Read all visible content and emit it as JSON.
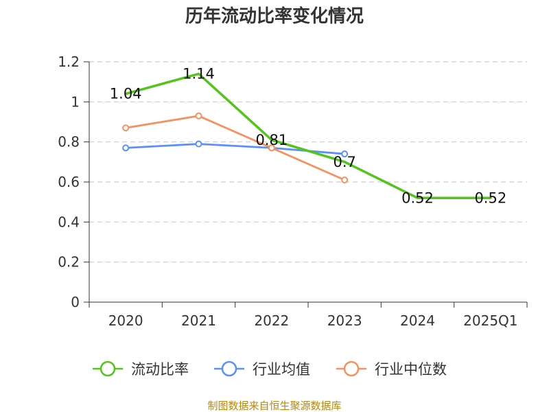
{
  "chart_data": {
    "type": "line",
    "title": "历年流动比率变化情况",
    "categories": [
      "2020",
      "2021",
      "2022",
      "2023",
      "2024",
      "2025Q1"
    ],
    "ylim": [
      0,
      1.2
    ],
    "yticks": [
      "0",
      "0.2",
      "0.4",
      "0.6",
      "0.8",
      "1",
      "1.2"
    ],
    "grid": true,
    "legend_position": "bottom",
    "series": [
      {
        "name": "流动比率",
        "color": "#52c41a",
        "values": [
          1.04,
          1.14,
          0.81,
          0.7,
          0.52,
          0.52
        ],
        "data_labels": [
          "1.04",
          "1.14",
          "0.81",
          "0.7",
          "0.52",
          "0.52"
        ],
        "markers": false
      },
      {
        "name": "行业均值",
        "color": "#5b8ff9",
        "values": [
          0.77,
          0.79,
          0.77,
          0.74,
          null,
          null
        ],
        "markers": true
      },
      {
        "name": "行业中位数",
        "color": "#f6905f",
        "values": [
          0.87,
          0.93,
          0.77,
          0.61,
          null,
          null
        ],
        "markers": true
      }
    ]
  },
  "source_note": "制图数据来自恒生聚源数据库"
}
